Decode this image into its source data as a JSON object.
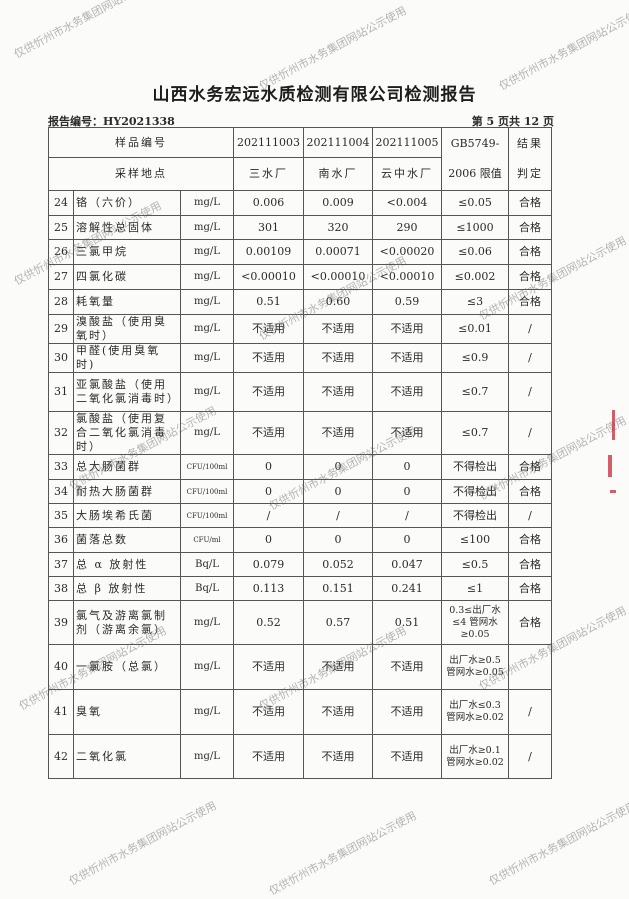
{
  "title": "山西水务宏远水质检测有限公司检测报告",
  "report_no": "报告编号：HY2021338",
  "page_info": "第 5 页共 12 页",
  "header": {
    "sample_no_label": "样品编号",
    "site_label": "采样地点",
    "samples": [
      "202111003",
      "202111004",
      "202111005"
    ],
    "sites": [
      "三水厂",
      "南水厂",
      "云中水厂"
    ],
    "limit_label_1": "GB5749-",
    "limit_label_2": "2006 限值",
    "result_label_1": "结果",
    "result_label_2": "判定"
  },
  "rows": [
    {
      "no": "24",
      "name": "铬（六价）",
      "unit": "mg/L",
      "v": [
        "0.006",
        "0.009",
        "<0.004"
      ],
      "limit": "≤0.05",
      "result": "合格"
    },
    {
      "no": "25",
      "name": "溶解性总固体",
      "unit": "mg/L",
      "v": [
        "301",
        "320",
        "290"
      ],
      "limit": "≤1000",
      "result": "合格"
    },
    {
      "no": "26",
      "name": "三氯甲烷",
      "unit": "mg/L",
      "v": [
        "0.00109",
        "0.00071",
        "<0.00020"
      ],
      "limit": "≤0.06",
      "result": "合格"
    },
    {
      "no": "27",
      "name": "四氯化碳",
      "unit": "mg/L",
      "v": [
        "<0.00010",
        "<0.00010",
        "<0.00010"
      ],
      "limit": "≤0.002",
      "result": "合格"
    },
    {
      "no": "28",
      "name": "耗氧量",
      "unit": "mg/L",
      "v": [
        "0.51",
        "0.60",
        "0.59"
      ],
      "limit": "≤3",
      "result": "合格"
    },
    {
      "no": "29",
      "name": "溴酸盐（使用臭氧时）",
      "unit": "mg/L",
      "v": [
        "不适用",
        "不适用",
        "不适用"
      ],
      "limit": "≤0.01",
      "result": "/"
    },
    {
      "no": "30",
      "name": "甲醛(使用臭氧时)",
      "unit": "mg/L",
      "v": [
        "不适用",
        "不适用",
        "不适用"
      ],
      "limit": "≤0.9",
      "result": "/"
    },
    {
      "no": "31",
      "name": "亚氯酸盐（使用二氧化氯消毒时）",
      "unit": "mg/L",
      "v": [
        "不适用",
        "不适用",
        "不适用"
      ],
      "limit": "≤0.7",
      "result": "/"
    },
    {
      "no": "32",
      "name": "氯酸盐（使用复合二氧化氯消毒时）",
      "unit": "mg/L",
      "v": [
        "不适用",
        "不适用",
        "不适用"
      ],
      "limit": "≤0.7",
      "result": "/"
    },
    {
      "no": "33",
      "name": "总大肠菌群",
      "unit": "CFU/100ml",
      "v": [
        "0",
        "0",
        "0"
      ],
      "limit": "不得检出",
      "result": "合格"
    },
    {
      "no": "34",
      "name": "耐热大肠菌群",
      "unit": "CFU/100ml",
      "v": [
        "0",
        "0",
        "0"
      ],
      "limit": "不得检出",
      "result": "合格"
    },
    {
      "no": "35",
      "name": "大肠埃希氏菌",
      "unit": "CFU/100ml",
      "v": [
        "/",
        "/",
        "/"
      ],
      "limit": "不得检出",
      "result": "/"
    },
    {
      "no": "36",
      "name": "菌落总数",
      "unit": "CFU/ml",
      "v": [
        "0",
        "0",
        "0"
      ],
      "limit": "≤100",
      "result": "合格"
    },
    {
      "no": "37",
      "name": "总 α 放射性",
      "unit": "Bq/L",
      "v": [
        "0.079",
        "0.052",
        "0.047"
      ],
      "limit": "≤0.5",
      "result": "合格"
    },
    {
      "no": "38",
      "name": "总 β 放射性",
      "unit": "Bq/L",
      "v": [
        "0.113",
        "0.151",
        "0.241"
      ],
      "limit": "≤1",
      "result": "合格"
    },
    {
      "no": "39",
      "name": "氯气及游离氯制剂（游离余氯）",
      "unit": "mg/L",
      "v": [
        "0.52",
        "0.57",
        "0.51"
      ],
      "limit": "0.3≤出厂水≤4 管网水≥0.05",
      "result": "合格"
    },
    {
      "no": "40",
      "name": "一氯胺（总氯）",
      "unit": "mg/L",
      "v": [
        "不适用",
        "不适用",
        "不适用"
      ],
      "limit": "出厂水≥0.5 管网水≥0.05",
      "result": ""
    },
    {
      "no": "41",
      "name": "臭氧",
      "unit": "mg/L",
      "v": [
        "不适用",
        "不适用",
        "不适用"
      ],
      "limit": "出厂水≤0.3 管网水≥0.02",
      "result": "/"
    },
    {
      "no": "42",
      "name": "二氧化氯",
      "unit": "mg/L",
      "v": [
        "不适用",
        "不适用",
        "不适用"
      ],
      "limit": "出厂水≥0.1 管网水≥0.02",
      "result": "/"
    }
  ],
  "watermark": "仅供忻州市水务集团网站公示使用",
  "colors": {
    "stamp": "#c8283a"
  }
}
